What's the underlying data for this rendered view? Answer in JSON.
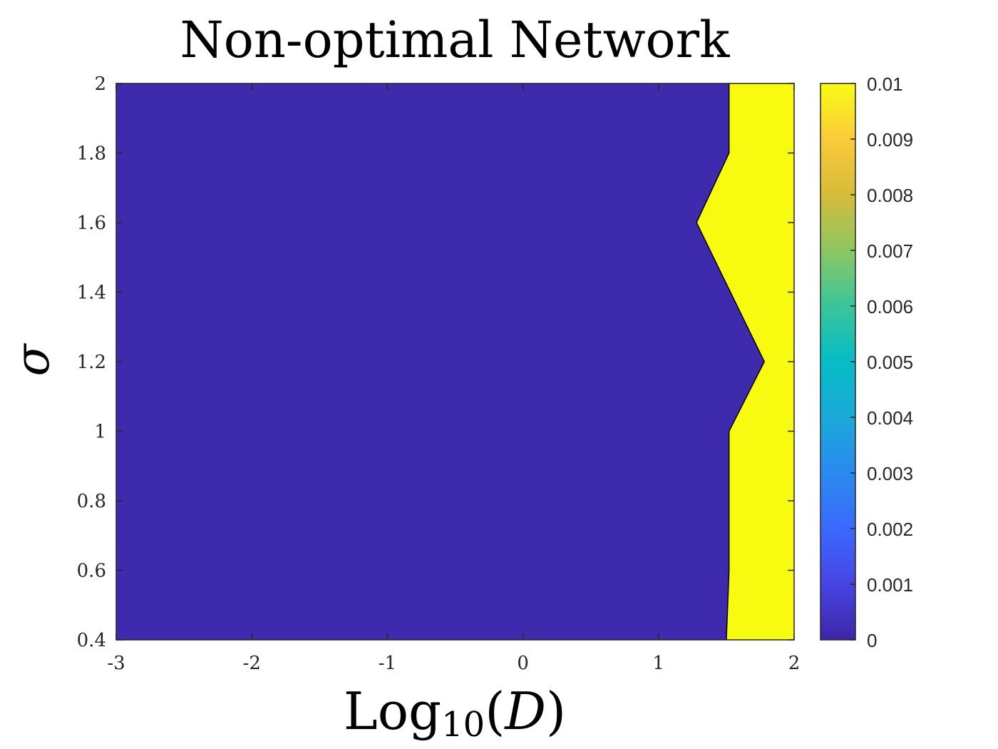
{
  "chart_data": {
    "type": "contourf",
    "title": "Non-optimal Network",
    "xlabel": {
      "base": "Log",
      "sub": "10",
      "open": "(",
      "var": "D",
      "close": ")"
    },
    "ylabel": "σ",
    "xlim": [
      -3,
      2
    ],
    "ylim": [
      0.4,
      2
    ],
    "xticks": [
      -3,
      -2,
      -1,
      0,
      1,
      2
    ],
    "xtick_labels": [
      "-3",
      "-2",
      "-1",
      "0",
      "1",
      "2"
    ],
    "yticks": [
      0.4,
      0.6,
      0.8,
      1,
      1.2,
      1.4,
      1.6,
      1.8,
      2
    ],
    "ytick_labels": [
      "0.4",
      "0.6",
      "0.8",
      "1",
      "1.2",
      "1.4",
      "1.6",
      "1.8",
      "2"
    ],
    "regions": [
      {
        "name": "",
        "value": 0,
        "color": "#3d2aac"
      },
      {
        "name": "",
        "value": 0.01,
        "color": "#f8fa10"
      }
    ],
    "boundary": {
      "note": "contour between value 0 (left) and 0.01 (right), x = Log10(D) at each sigma",
      "sigma": [
        0.4,
        0.6,
        0.8,
        1.0,
        1.2,
        1.4,
        1.6,
        1.8,
        2.0
      ],
      "log10D": [
        1.5,
        1.52,
        1.52,
        1.52,
        1.78,
        1.53,
        1.28,
        1.52,
        1.52
      ]
    },
    "colorbar": {
      "range": [
        0,
        0.01
      ],
      "ticks": [
        0,
        0.001,
        0.002,
        0.003,
        0.004,
        0.005,
        0.006,
        0.007,
        0.008,
        0.009,
        0.01
      ],
      "tick_labels": [
        "0",
        "0.001",
        "0.002",
        "0.003",
        "0.004",
        "0.005",
        "0.006",
        "0.007",
        "0.008",
        "0.009",
        "0.01"
      ],
      "colormap": "parula"
    },
    "grid": false
  }
}
